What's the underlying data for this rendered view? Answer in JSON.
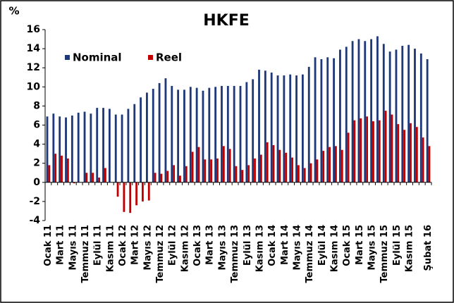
{
  "chart_data": {
    "type": "bar",
    "title": "HKFE",
    "y_label": "%",
    "categories": [
      "Ocak 11",
      null,
      "Mart 11",
      null,
      "Mayıs 11",
      null,
      "Temmuz 11",
      null,
      "Eylül 11",
      null,
      "Kasım 11",
      null,
      "Ocak 12",
      null,
      "Mart 12",
      null,
      "Mayıs 12",
      null,
      "Temmuz 12",
      null,
      "Eylül 12",
      null,
      "Kasım 12",
      null,
      "Ocak 13",
      null,
      "Mart 13",
      null,
      "Mayıs 13",
      null,
      "Temmuz 13",
      null,
      "Eylül 13",
      null,
      "Kasım 13",
      null,
      "Ocak 14",
      null,
      "Mart 14",
      null,
      "Mayıs 14",
      null,
      "Temmuz 14",
      null,
      "Eylül 14",
      null,
      "Kasım 14",
      null,
      "Ocak 15",
      null,
      "Mart 15",
      null,
      "Mayıs 15",
      null,
      "Temmuz 15",
      null,
      "Eylül 15",
      null,
      "Kasım 15",
      null,
      null,
      "Şubat 16"
    ],
    "series": [
      {
        "name": "Nominal",
        "color": "#1f3878",
        "values": [
          6.9,
          7.2,
          6.9,
          6.8,
          7.0,
          7.3,
          7.4,
          7.2,
          7.8,
          7.8,
          7.7,
          7.1,
          7.1,
          7.7,
          8.2,
          8.9,
          9.4,
          9.8,
          10.4,
          10.9,
          10.1,
          9.7,
          9.7,
          10.0,
          9.9,
          9.6,
          9.9,
          10.0,
          10.1,
          10.1,
          10.1,
          10.1,
          10.5,
          10.8,
          11.8,
          11.7,
          11.5,
          11.2,
          11.2,
          11.3,
          11.2,
          11.3,
          12.1,
          13.1,
          12.9,
          13.1,
          13.0,
          13.9,
          14.2,
          14.8,
          15.0,
          14.8,
          15.0,
          15.3,
          14.5,
          13.7,
          13.9,
          14.3,
          14.4,
          14.0,
          13.5,
          12.9
        ]
      },
      {
        "name": "Reel",
        "color": "#c00000",
        "values": [
          1.8,
          3.0,
          2.8,
          2.5,
          -0.1,
          0,
          1.0,
          1.0,
          0.5,
          1.5,
          0,
          -1.5,
          -3.1,
          -3.2,
          -2.4,
          -2.0,
          -1.9,
          1.0,
          0.9,
          1.2,
          1.8,
          0.7,
          1.7,
          3.2,
          3.7,
          2.4,
          2.4,
          2.5,
          3.8,
          3.5,
          1.7,
          1.3,
          1.8,
          2.5,
          2.9,
          4.2,
          3.9,
          3.4,
          3.1,
          2.6,
          1.8,
          1.5,
          2.0,
          2.4,
          3.3,
          3.7,
          3.8,
          3.4,
          5.2,
          6.5,
          6.7,
          6.9,
          6.4,
          6.5,
          7.5,
          7.1,
          6.1,
          5.5,
          6.2,
          5.8,
          4.7,
          3.8
        ]
      }
    ],
    "ylim": [
      -4,
      16
    ],
    "yticks": [
      -4,
      -2,
      0,
      2,
      4,
      6,
      8,
      10,
      12,
      14,
      16
    ],
    "legend": "upper left"
  }
}
